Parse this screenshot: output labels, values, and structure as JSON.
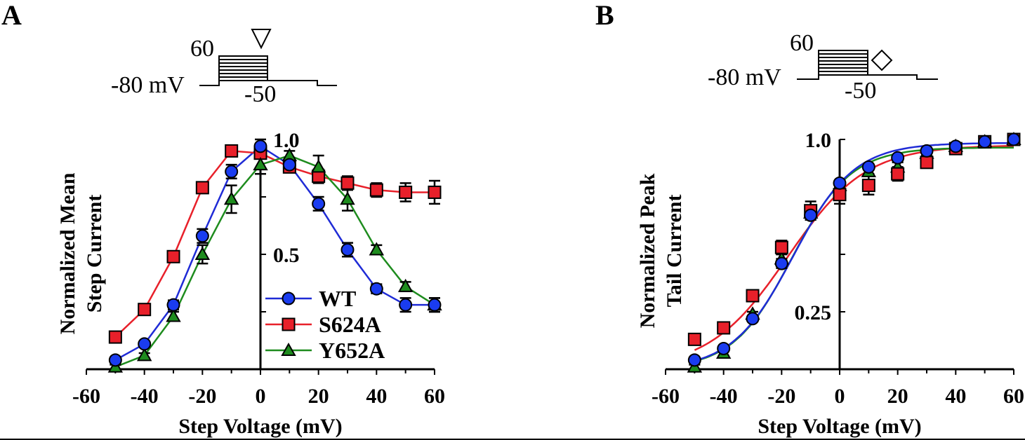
{
  "figure": {
    "panel_a_letter": "A",
    "panel_b_letter": "B",
    "protocol": {
      "holding_label": "-80 mV",
      "step_top_label": "60",
      "tail_label": "-50",
      "panel_a_marker": "triangle-down-open",
      "panel_b_marker": "diamond-open"
    }
  },
  "chart_data": [
    {
      "id": "A",
      "type": "line",
      "title": "",
      "xlabel": "Step Voltage (mV)",
      "ylabel_line1": "Normalized Mean",
      "ylabel_line2": "Step Current",
      "xlim": [
        -60,
        60
      ],
      "ylim": [
        0,
        1.0
      ],
      "xticks": [
        -60,
        -40,
        -20,
        0,
        20,
        40,
        60
      ],
      "xtick_labels": [
        "-60",
        "-40",
        "-20",
        "0",
        "20",
        "40",
        "60"
      ],
      "yticks_labeled": [
        0.5,
        1.0
      ],
      "ytick_labels": [
        "0.5",
        "1.0"
      ],
      "yticks_minor": [
        0.25,
        0.75
      ],
      "grid": false,
      "legend": {
        "placement": "bottom-right",
        "entries": [
          "WT",
          "S624A",
          "Y652A"
        ]
      },
      "x": [
        -50,
        -40,
        -30,
        -20,
        -10,
        0,
        10,
        20,
        30,
        40,
        50,
        60
      ],
      "series": [
        {
          "name": "WT",
          "color": "#1f2bd6",
          "fill": "#1a3cf0",
          "marker": "circle",
          "values": [
            0.04,
            0.11,
            0.28,
            0.58,
            0.86,
            0.97,
            0.89,
            0.72,
            0.52,
            0.35,
            0.28,
            0.28
          ],
          "errors": [
            0.01,
            0.01,
            0.02,
            0.03,
            0.03,
            0.03,
            0.02,
            0.03,
            0.03,
            0.02,
            0.03,
            0.03
          ]
        },
        {
          "name": "S624A",
          "color": "#e8202a",
          "fill": "#e8202a",
          "marker": "square",
          "values": [
            0.14,
            0.26,
            0.49,
            0.79,
            0.95,
            0.94,
            0.88,
            0.84,
            0.81,
            0.78,
            0.77,
            0.77
          ],
          "errors": [
            0.01,
            0.01,
            0.01,
            0.01,
            0.02,
            0.02,
            0.02,
            0.03,
            0.03,
            0.03,
            0.04,
            0.05
          ]
        },
        {
          "name": "Y652A",
          "color": "#1e8c1e",
          "fill": "#1e8c1e",
          "marker": "triangle",
          "values": [
            0.01,
            0.06,
            0.23,
            0.5,
            0.74,
            0.89,
            0.93,
            0.88,
            0.74,
            0.52,
            0.36,
            0.28
          ],
          "errors": [
            0.01,
            0.01,
            0.02,
            0.04,
            0.06,
            0.04,
            0.02,
            0.05,
            0.05,
            0.02,
            0.02,
            0.03
          ]
        }
      ]
    },
    {
      "id": "B",
      "type": "scatter",
      "title": "",
      "xlabel": "Step Voltage (mV)",
      "ylabel_line1": "Normalized Peak",
      "ylabel_line2": "Tail Current",
      "xlim": [
        -60,
        60
      ],
      "ylim": [
        0,
        1.0
      ],
      "xticks": [
        -60,
        -40,
        -20,
        0,
        20,
        40,
        60
      ],
      "xtick_labels": [
        "-60",
        "-40",
        "-20",
        "0",
        "20",
        "40",
        "60"
      ],
      "yticks_labeled": [
        0.25,
        1.0
      ],
      "ytick_labels": [
        "0.25",
        "1.0"
      ],
      "yticks_minor": [
        0.5,
        0.75
      ],
      "grid": false,
      "legend": null,
      "fit": "Boltzmann",
      "x": [
        -50,
        -40,
        -30,
        -20,
        -10,
        0,
        10,
        20,
        30,
        40,
        50,
        60
      ],
      "series": [
        {
          "name": "WT",
          "color": "#1f2bd6",
          "fill": "#1a3cf0",
          "marker": "circle",
          "values": [
            0.04,
            0.09,
            0.22,
            0.46,
            0.67,
            0.81,
            0.88,
            0.92,
            0.95,
            0.97,
            0.99,
            1.0
          ],
          "errors": [
            0.01,
            0.01,
            0.01,
            0.02,
            0.02,
            0.01,
            0.01,
            0.01,
            0.01,
            0.01,
            0.01,
            0.01
          ],
          "fit_params": {
            "vhalf": -16,
            "slope": 10.5,
            "max": 0.985
          }
        },
        {
          "name": "S624A",
          "color": "#e8202a",
          "fill": "#e8202a",
          "marker": "square",
          "values": [
            0.13,
            0.18,
            0.32,
            0.53,
            0.69,
            0.76,
            0.8,
            0.85,
            0.9,
            0.96,
            0.99,
            1.0
          ],
          "errors": [
            0.01,
            0.01,
            0.01,
            0.03,
            0.04,
            0.04,
            0.04,
            0.03,
            0.01,
            0.01,
            0.01,
            0.01
          ],
          "fit_params": {
            "vhalf": -18,
            "slope": 13.5,
            "max": 0.975
          }
        },
        {
          "name": "Y652A",
          "color": "#1e8c1e",
          "fill": "#1e8c1e",
          "marker": "triangle",
          "values": [
            0.01,
            0.07,
            0.24,
            0.48,
            0.68,
            0.8,
            0.86,
            0.88,
            0.94,
            0.97,
            0.99,
            1.0
          ],
          "errors": [
            0.01,
            0.01,
            0.01,
            0.02,
            0.02,
            0.01,
            0.01,
            0.02,
            0.01,
            0.01,
            0.01,
            0.01
          ],
          "fit_params": {
            "vhalf": -16.5,
            "slope": 10.2,
            "max": 0.965
          }
        }
      ]
    }
  ]
}
